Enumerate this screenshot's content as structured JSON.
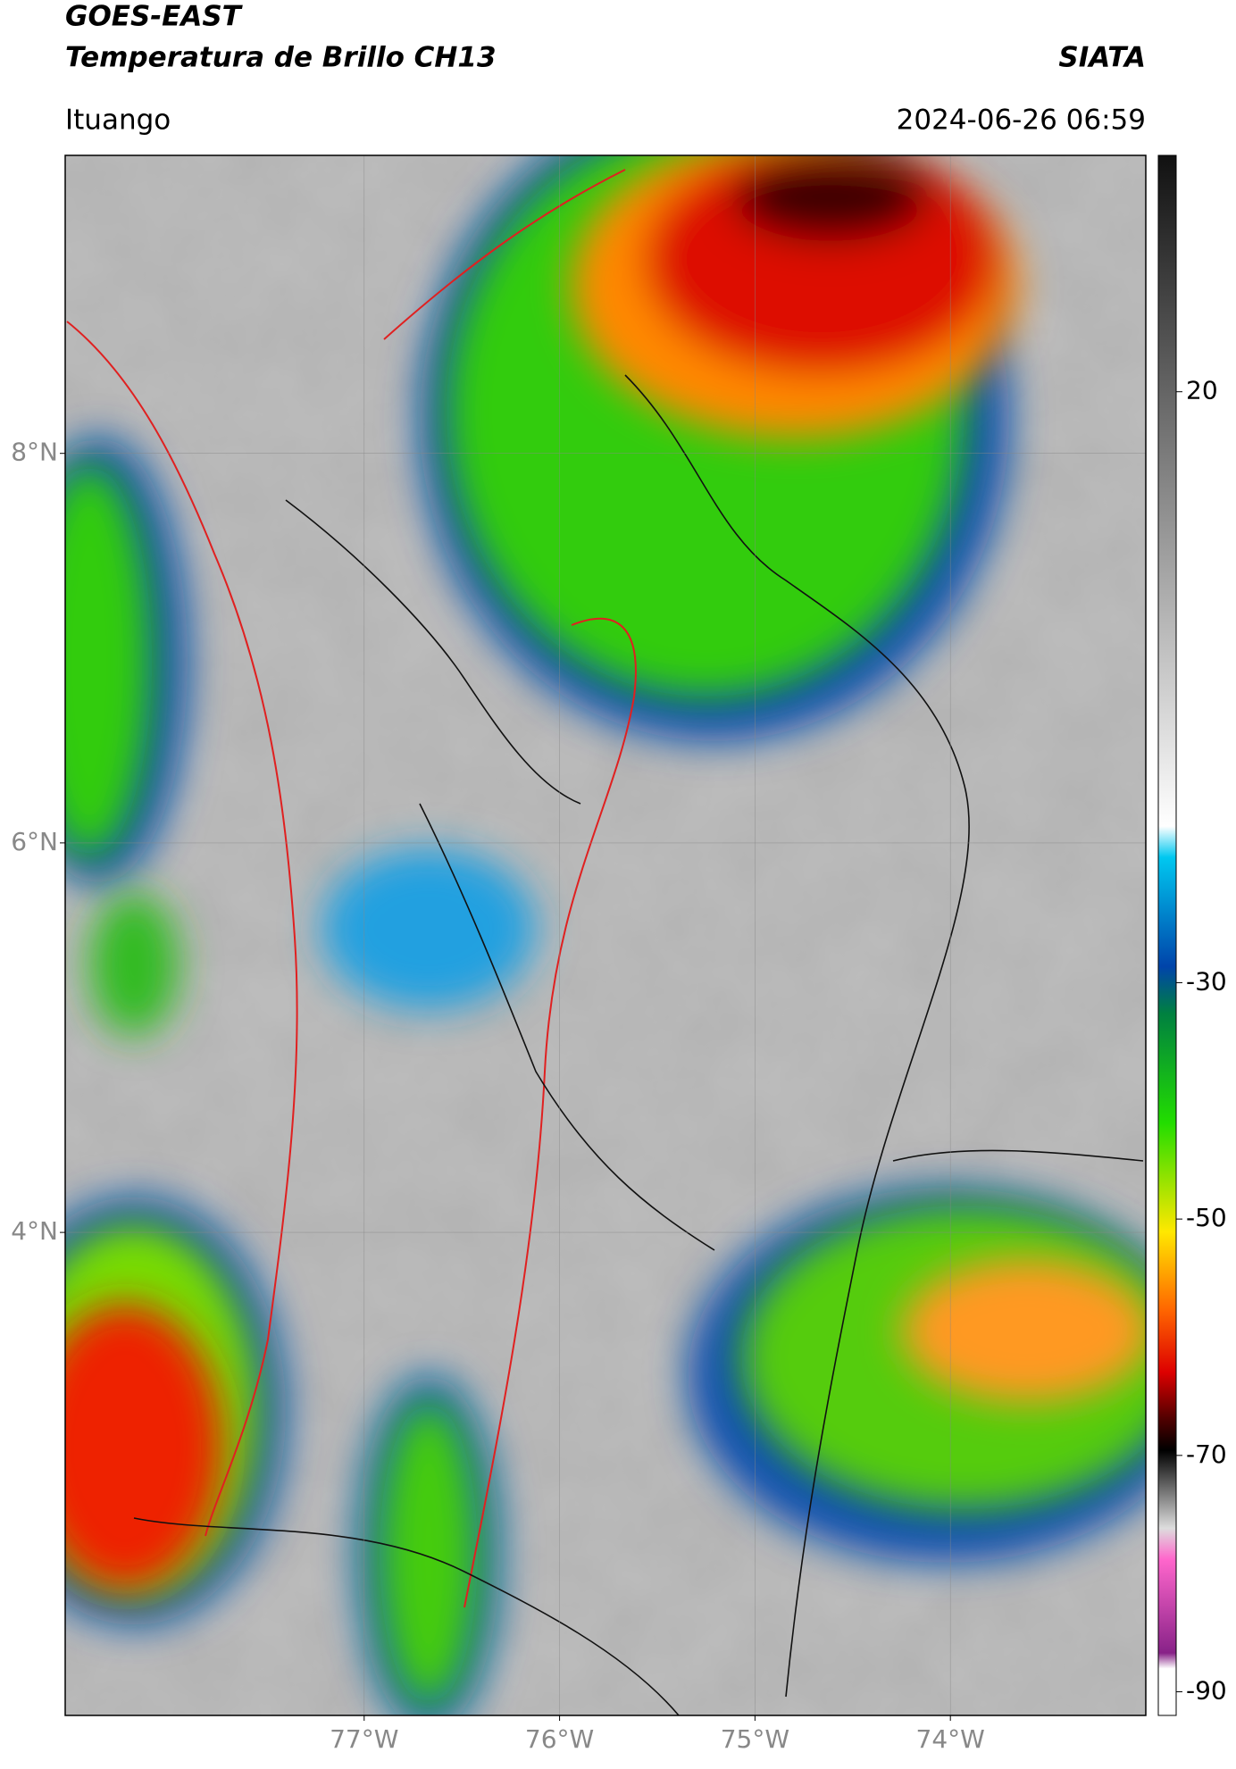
{
  "header": {
    "title": "GOES-EAST",
    "subtitle": "Temperatura de Brillo CH13",
    "source": "SIATA",
    "location": "Ituango",
    "datetime": "2024-06-26 06:59"
  },
  "map": {
    "xlim": [
      -78.53,
      -73.0
    ],
    "ylim": [
      1.52,
      9.53
    ],
    "xticks": [
      {
        "value": -77,
        "label": "77°W"
      },
      {
        "value": -76,
        "label": "76°W"
      },
      {
        "value": -75,
        "label": "75°W"
      },
      {
        "value": -74,
        "label": "74°W"
      }
    ],
    "yticks": [
      {
        "value": 8,
        "label": "8°N"
      },
      {
        "value": 6,
        "label": "6°N"
      },
      {
        "value": 4,
        "label": "4°N"
      }
    ]
  },
  "colorbar": {
    "lim": [
      -92,
      40
    ],
    "ticks": [
      20,
      -30,
      -50,
      -70,
      -90
    ]
  }
}
